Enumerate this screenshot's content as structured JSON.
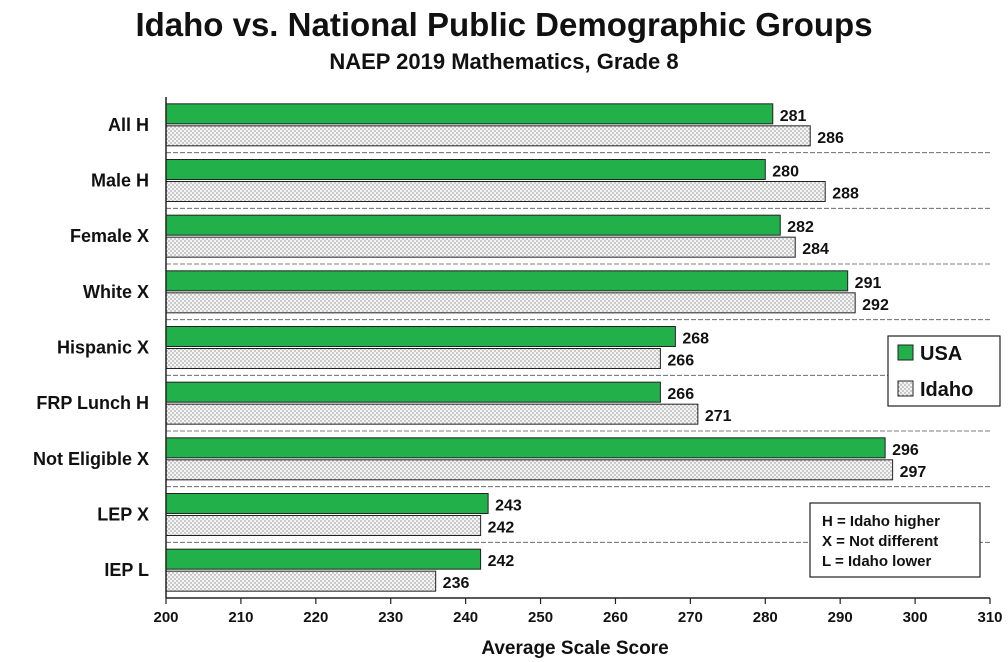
{
  "chart_data": {
    "type": "bar",
    "orientation": "horizontal",
    "title": "Idaho vs. National Public Demographic Groups",
    "subtitle": "NAEP 2019 Mathematics, Grade 8",
    "xlabel": "Average Scale Score",
    "ylabel": "",
    "xlim": [
      200,
      310
    ],
    "x_ticks": [
      200,
      210,
      220,
      230,
      240,
      250,
      260,
      270,
      280,
      290,
      300,
      310
    ],
    "grid": "horizontal separators between categories",
    "legend_position": "right",
    "categories": [
      "All H",
      "Male H",
      "Female X",
      "White X",
      "Hispanic X",
      "FRP Lunch H",
      "Not Eligible X",
      "LEP X",
      "IEP L"
    ],
    "series": [
      {
        "name": "USA",
        "color": "#22b04b",
        "pattern": "solid",
        "values": [
          281,
          280,
          282,
          291,
          268,
          266,
          296,
          243,
          242
        ]
      },
      {
        "name": "Idaho",
        "color": "#f2f2f2",
        "pattern": "dotted",
        "values": [
          286,
          288,
          284,
          292,
          266,
          271,
          297,
          242,
          236
        ]
      }
    ],
    "key": [
      "H = Idaho higher",
      "X = Not different",
      "L = Idaho lower"
    ]
  }
}
